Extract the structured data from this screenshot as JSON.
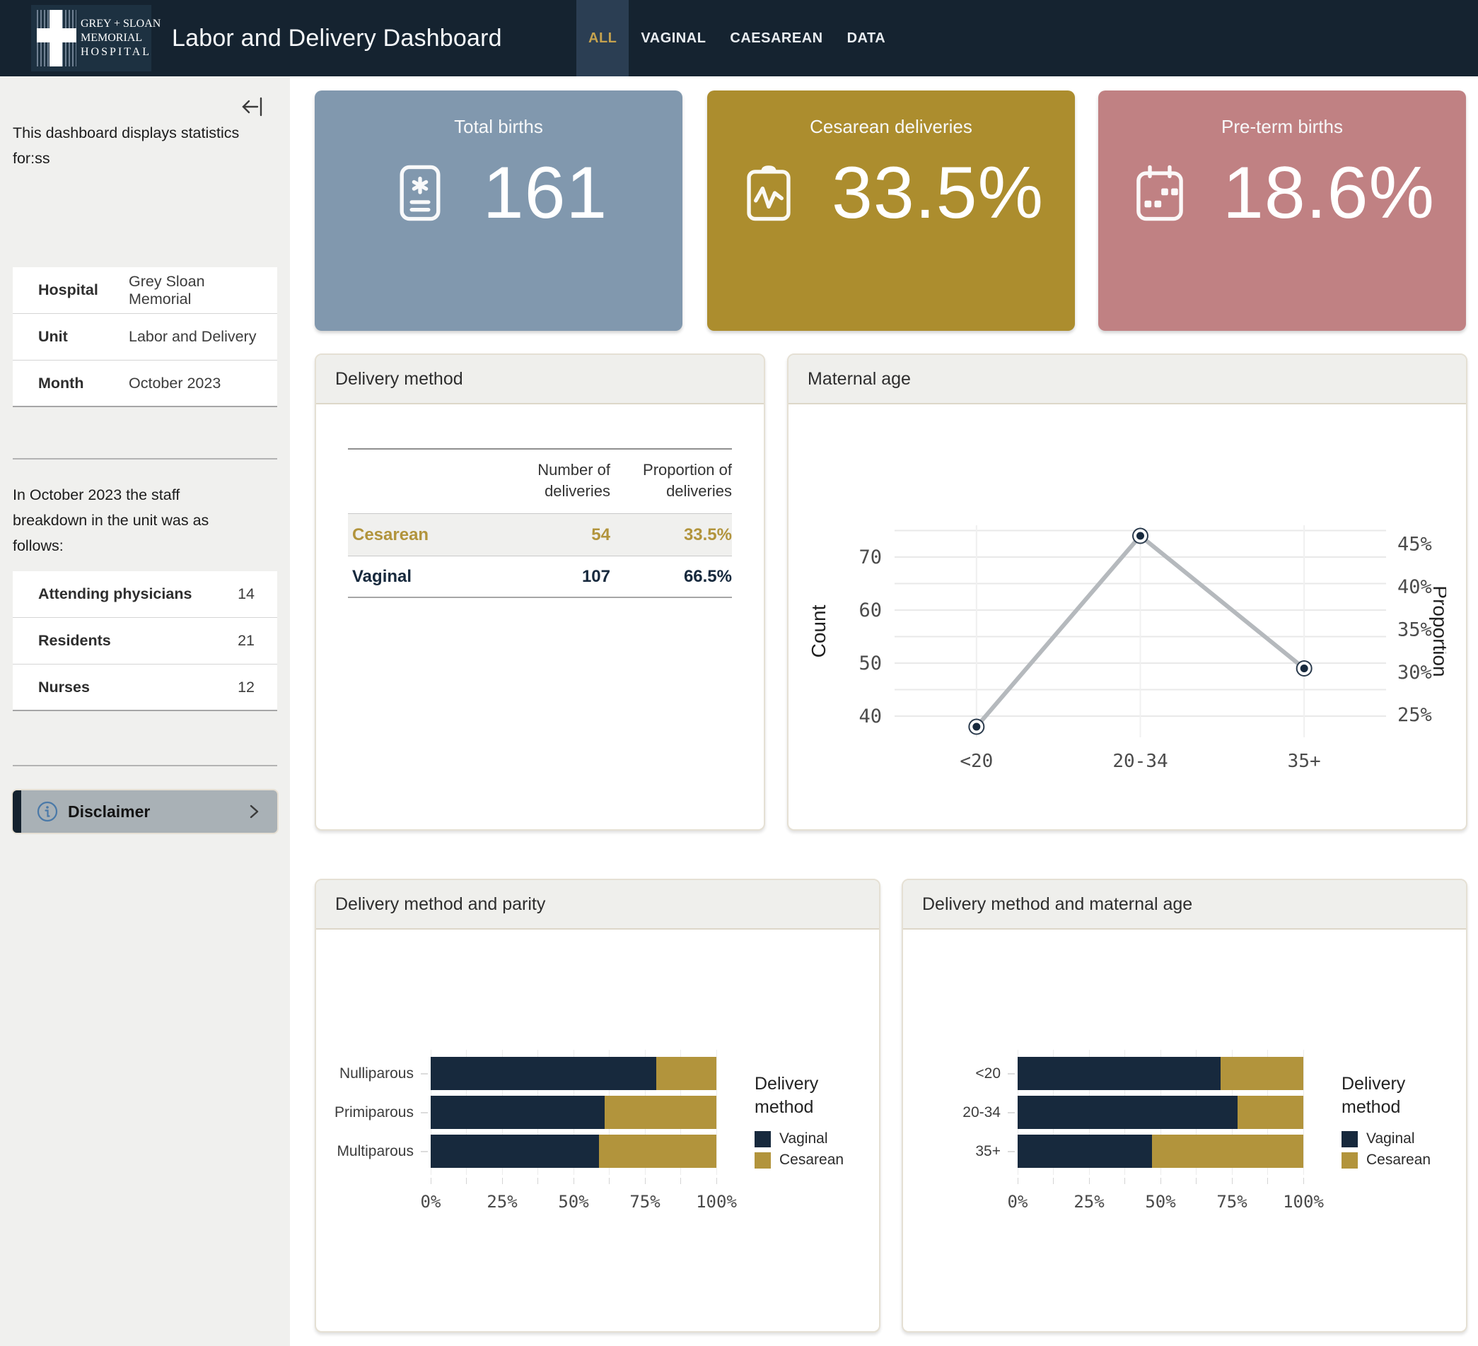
{
  "header": {
    "logo": {
      "line1": "GREY + SLOAN",
      "line2": "MEMORIAL",
      "line3": "HOSPITAL"
    },
    "title": "Labor and Delivery Dashboard",
    "tabs": [
      {
        "label": "ALL",
        "active": true
      },
      {
        "label": "VAGINAL",
        "active": false
      },
      {
        "label": "CAESAREAN",
        "active": false
      },
      {
        "label": "DATA",
        "active": false
      }
    ]
  },
  "sidebar": {
    "intro": "This dashboard displays statistics for:ss",
    "info_table": {
      "rows": [
        {
          "label": "Hospital",
          "value": "Grey Sloan Memorial"
        },
        {
          "label": "Unit",
          "value": "Labor and Delivery"
        },
        {
          "label": "Month",
          "value": "October 2023"
        }
      ]
    },
    "staff_intro": "In October 2023 the staff breakdown in the unit was as follows:",
    "staff_table": {
      "rows": [
        {
          "label": "Attending physicians",
          "value": "14"
        },
        {
          "label": "Residents",
          "value": "21"
        },
        {
          "label": "Nurses",
          "value": "12"
        }
      ]
    },
    "disclaimer": {
      "label": "Disclaimer"
    }
  },
  "kpi": {
    "cards": [
      {
        "title": "Total births",
        "value": "161",
        "color": "#8198ae",
        "icon": "birth-record-icon"
      },
      {
        "title": "Cesarean deliveries",
        "value": "33.5%",
        "color": "#ac8d2e",
        "icon": "clipboard-pulse-icon"
      },
      {
        "title": "Pre-term births",
        "value": "18.6%",
        "color": "#c08183",
        "icon": "calendar-icon"
      }
    ]
  },
  "panels": {
    "delivery_method": {
      "title": "Delivery method"
    }
  },
  "delivery_table": {
    "col_headers": [
      "Number of deliveries",
      "Proportion of deliveries"
    ],
    "rows": [
      {
        "label": "Cesarean",
        "number": "54",
        "proportion": "33.5%",
        "color": "#b2943c",
        "shaded": true
      },
      {
        "label": "Vaginal",
        "number": "107",
        "proportion": "66.5%",
        "color": "#17293d",
        "shaded": false
      }
    ]
  },
  "colors": {
    "navy": "#17293d",
    "gold": "#b2943c",
    "header_navy": "#152330",
    "active_tab_gold": "#c5a24e",
    "line_gray": "#b5b9bd",
    "grid": "#e9e9e9",
    "tick_text": "#4c4c4c"
  },
  "chart_data": [
    {
      "type": "line",
      "title": "Maternal age",
      "categories": [
        "<20",
        "20-34",
        "35+"
      ],
      "series": [
        {
          "name": "Count",
          "values": [
            38,
            74,
            49
          ]
        }
      ],
      "ylabel": "Count",
      "y2label": "Proportion",
      "yticks": [
        40,
        50,
        60,
        70
      ],
      "y2ticks": [
        25,
        30,
        35,
        40,
        45
      ],
      "ylim": [
        36,
        76
      ],
      "grid_step": 5,
      "proportion_total": 161,
      "grid": true,
      "legend_position": "none"
    },
    {
      "type": "bar",
      "stacked": true,
      "orientation": "horizontal",
      "title": "Delivery method and parity",
      "categories": [
        "Nulliparous",
        "Primiparous",
        "Multiparous"
      ],
      "series": [
        {
          "name": "Vaginal",
          "color": "#17293d",
          "values": [
            79,
            61,
            59
          ]
        },
        {
          "name": "Cesarean",
          "color": "#b2943c",
          "values": [
            21,
            39,
            41
          ]
        }
      ],
      "xlabel": "",
      "ylabel": "",
      "xticks": [
        0,
        25,
        50,
        75,
        100
      ],
      "xtick_suffix": "%",
      "minor_grid_step": 12.5,
      "xlim": [
        0,
        100
      ],
      "legend_title": "Delivery method",
      "legend_position": "right"
    },
    {
      "type": "bar",
      "stacked": true,
      "orientation": "horizontal",
      "title": "Delivery method and maternal age",
      "categories": [
        "<20",
        "20-34",
        "35+"
      ],
      "series": [
        {
          "name": "Vaginal",
          "color": "#17293d",
          "values": [
            71,
            77,
            47
          ]
        },
        {
          "name": "Cesarean",
          "color": "#b2943c",
          "values": [
            29,
            23,
            53
          ]
        }
      ],
      "xlabel": "",
      "ylabel": "",
      "xticks": [
        0,
        25,
        50,
        75,
        100
      ],
      "xtick_suffix": "%",
      "minor_grid_step": 12.5,
      "xlim": [
        0,
        100
      ],
      "legend_title": "Delivery method",
      "legend_position": "right"
    }
  ]
}
